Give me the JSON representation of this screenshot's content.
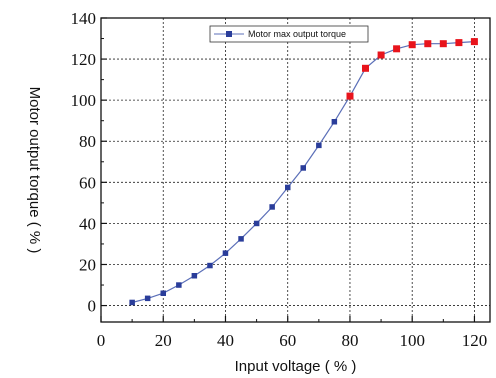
{
  "chart_data": {
    "type": "line",
    "xlabel": "Input voltage ( % )",
    "ylabel": "Motor output torque ( % )",
    "xlim": [
      0,
      125
    ],
    "ylim": [
      -8,
      140
    ],
    "x_ticks": [
      0,
      20,
      40,
      60,
      80,
      100,
      120
    ],
    "y_ticks": [
      0,
      20,
      40,
      60,
      80,
      100,
      120,
      140
    ],
    "x_tick_labels": [
      "0",
      "20",
      "40",
      "60",
      "80",
      "100",
      "120"
    ],
    "y_tick_labels": [
      "0",
      "20",
      "40",
      "60",
      "80",
      "100",
      "120",
      "140"
    ],
    "grid": true,
    "legend_position": "top-center",
    "series": [
      {
        "name": "Motor max output torque",
        "color": "#5b6fb8",
        "marker_color": "#2a3d9a",
        "highlight_color": "#e8141c",
        "x": [
          10,
          15,
          20,
          25,
          30,
          35,
          40,
          45,
          50,
          55,
          60,
          65,
          70,
          75,
          80,
          85,
          90,
          95,
          100,
          105,
          110,
          115,
          120
        ],
        "y": [
          1.5,
          3.5,
          6,
          10,
          14.5,
          19.5,
          25.5,
          32.5,
          40,
          48,
          57.5,
          67,
          78,
          89.5,
          102,
          115.5,
          122,
          125,
          127,
          127.5,
          127.5,
          128,
          128.5
        ],
        "highlight_from_x": 80
      }
    ]
  }
}
